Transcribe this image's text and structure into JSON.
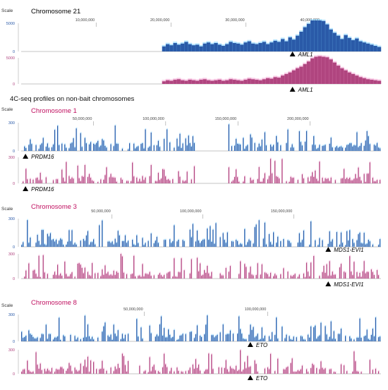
{
  "figure": {
    "section_label": "4C-seq profiles on non-bait chromosomes",
    "scale_label": "Scale",
    "colors": {
      "blue": "#2a5aa8",
      "blue_light": "#7fd0ff",
      "pink": "#b0457f",
      "pink_light": "#f3a3d1",
      "axis": "#777777",
      "bait_title": "#000000",
      "nonbait_title": "#c01060"
    }
  },
  "chart_data": [
    {
      "type": "area",
      "title": "Chromosome 21",
      "ticks": [
        {
          "x": 10000000,
          "label": "10,000,000"
        },
        {
          "x": 20000000,
          "label": "20,000,000"
        },
        {
          "x": 30000000,
          "label": "30,000,000"
        },
        {
          "x": 40000000,
          "label": "40,000,000"
        }
      ],
      "xlim": [
        0,
        48000000
      ],
      "scale": [
        0,
        5000
      ],
      "yticks": [
        {
          "v": 5000,
          "label": "5000"
        },
        {
          "v": 0,
          "label": "0"
        }
      ],
      "series": [
        {
          "color": "blue",
          "gene": "AML1",
          "gene_pos": 36200000,
          "values": [
            0,
            0,
            0,
            0,
            0,
            0,
            0,
            0,
            0,
            0,
            0,
            0,
            0,
            0,
            0,
            0,
            0,
            0,
            0,
            0,
            0,
            0,
            0,
            0,
            0,
            0,
            0,
            0,
            0,
            0,
            0,
            0,
            0,
            0,
            0,
            0,
            0,
            0,
            900,
            1300,
            1100,
            1500,
            1200,
            1400,
            1700,
            1300,
            1100,
            1200,
            900,
            1400,
            1600,
            1300,
            1500,
            1200,
            1000,
            1300,
            1700,
            1500,
            1400,
            1200,
            1600,
            1800,
            1400,
            1300,
            1500,
            1700,
            1300,
            1600,
            1900,
            1700,
            2200,
            1800,
            2500,
            2100,
            2800,
            3500,
            4300,
            4900,
            5500,
            5500,
            5500,
            5400,
            4800,
            3900,
            3300,
            2800,
            2200,
            2900,
            2400,
            2000,
            2300,
            1800,
            1600,
            1400,
            1200,
            1000,
            800
          ]
        },
        {
          "color": "pink",
          "gene": "AML1",
          "gene_pos": 36200000,
          "values": [
            0,
            0,
            0,
            0,
            0,
            0,
            0,
            0,
            0,
            0,
            0,
            0,
            0,
            0,
            0,
            0,
            0,
            0,
            0,
            0,
            0,
            0,
            0,
            0,
            0,
            0,
            0,
            0,
            0,
            0,
            0,
            0,
            0,
            0,
            0,
            0,
            0,
            0,
            500,
            700,
            600,
            800,
            900,
            700,
            600,
            800,
            700,
            600,
            800,
            900,
            700,
            600,
            700,
            800,
            600,
            700,
            900,
            800,
            700,
            600,
            800,
            1000,
            900,
            800,
            700,
            900,
            1100,
            1000,
            1300,
            1200,
            1600,
            1900,
            2200,
            2600,
            3000,
            3300,
            3800,
            4300,
            4900,
            5200,
            5300,
            5200,
            5100,
            4700,
            4100,
            3500,
            3000,
            2600,
            2200,
            1900,
            1600,
            1300,
            1100,
            900,
            800,
            700,
            600
          ]
        }
      ]
    },
    {
      "type": "bar",
      "title": "Chromosome 1",
      "ticks": [
        {
          "x": 50000000,
          "label": "50,000,000"
        },
        {
          "x": 100000000,
          "label": "100,000,000"
        },
        {
          "x": 150000000,
          "label": "150,000,000"
        },
        {
          "x": 200000000,
          "label": "200,000,000"
        }
      ],
      "xlim": [
        0,
        249000000
      ],
      "scale": [
        0,
        300
      ],
      "yticks": [
        {
          "v": 300,
          "label": "300"
        },
        {
          "v": 0,
          "label": "0"
        }
      ],
      "gap": [
        121000000,
        143000000
      ],
      "series": [
        {
          "color": "blue",
          "gene": "PRDM16",
          "gene_pos": 3000000
        },
        {
          "color": "pink",
          "gene": "PRDM16",
          "gene_pos": 3000000
        }
      ]
    },
    {
      "type": "bar",
      "title": "Chromosome 3",
      "ticks": [
        {
          "x": 50000000,
          "label": "50,000,000"
        },
        {
          "x": 100000000,
          "label": "100,000,000"
        },
        {
          "x": 150000000,
          "label": "150,000,000"
        }
      ],
      "xlim": [
        0,
        198000000
      ],
      "scale": [
        0,
        300
      ],
      "yticks": [
        {
          "v": 300,
          "label": "300"
        },
        {
          "v": 0,
          "label": "0"
        }
      ],
      "gap": [
        90000000,
        93000000
      ],
      "series": [
        {
          "color": "blue",
          "gene": "MDS1-EVI1",
          "gene_pos": 169000000
        },
        {
          "color": "pink",
          "gene": "MDS1-EVI1",
          "gene_pos": 169000000
        }
      ]
    },
    {
      "type": "bar",
      "title": "Chromosome 8",
      "ticks": [
        {
          "x": 50000000,
          "label": "50,000,000"
        },
        {
          "x": 100000000,
          "label": "100,000,000"
        }
      ],
      "xlim": [
        0,
        146000000
      ],
      "scale": [
        0,
        300
      ],
      "yticks": [
        {
          "v": 300,
          "label": "300"
        },
        {
          "v": 0,
          "label": "0"
        }
      ],
      "gap": [
        44000000,
        47000000
      ],
      "series": [
        {
          "color": "blue",
          "gene": "ETO",
          "gene_pos": 93000000
        },
        {
          "color": "pink",
          "gene": "ETO",
          "gene_pos": 93000000
        }
      ]
    }
  ]
}
